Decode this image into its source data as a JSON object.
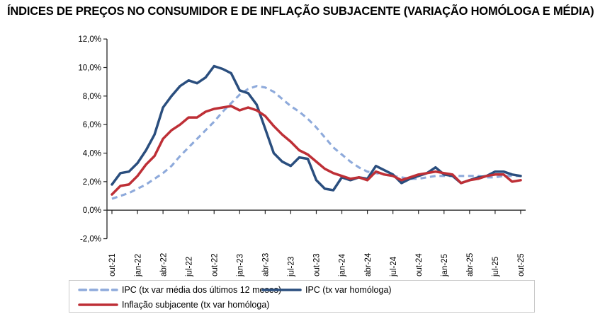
{
  "title": "ÍNDICES DE PREÇOS NO CONSUMIDOR E DE INFLAÇÃO SUBJACENTE (VARIAÇÃO HOMÓLOGA E MÉDIA)",
  "colors": {
    "ipc_media": "#8EAADB",
    "ipc_homologa": "#2A4E7E",
    "subjacente": "#BE2F36",
    "axis": "#262626",
    "tick_text": "#000000",
    "legend_border": "#C9C9C9",
    "background": "#FFFFFF"
  },
  "legend": {
    "ipc_media_label": "IPC (tx var média dos últimos 12 meses)",
    "ipc_homologa_label": "IPC (tx var homóloga)",
    "subjacente_label": "Inflação subjacente (tx var homóloga)"
  },
  "chart_data": {
    "type": "line",
    "title": "ÍNDICES DE PREÇOS NO CONSUMIDOR E DE INFLAÇÃO SUBJACENTE (VARIAÇÃO HOMÓLOGA E MÉDIA)",
    "xlabel": "",
    "ylabel": "",
    "x_frequency": "monthly",
    "x_range": [
      "out-21",
      "out-25"
    ],
    "x_tick_labels": [
      "out-21",
      "jan-22",
      "abr-22",
      "jul-22",
      "out-22",
      "jan-23",
      "abr-23",
      "jul-23",
      "out-23",
      "jan-24",
      "abr-24",
      "jul-24",
      "out-24",
      "jan-25",
      "abr-25",
      "jul-25",
      "out-25"
    ],
    "x_tick_every_n_months": 3,
    "ylim": [
      -2,
      12
    ],
    "y_tick_values": [
      12,
      10,
      8,
      6,
      4,
      2,
      0,
      -2
    ],
    "y_tick_format": "0,0%",
    "grid": false,
    "legend_position": "bottom",
    "series": [
      {
        "name": "IPC (tx var média dos últimos 12 meses)",
        "style": "dashed",
        "color_key": "ipc_media",
        "values": [
          0.8,
          1.0,
          1.2,
          1.5,
          1.8,
          2.2,
          2.6,
          3.1,
          3.8,
          4.4,
          5.0,
          5.6,
          6.2,
          6.9,
          7.5,
          8.1,
          8.5,
          8.7,
          8.6,
          8.3,
          7.8,
          7.3,
          6.9,
          6.4,
          5.8,
          5.1,
          4.4,
          3.9,
          3.4,
          3.0,
          2.7,
          2.6,
          2.5,
          2.4,
          2.3,
          2.2,
          2.2,
          2.3,
          2.4,
          2.4,
          2.4,
          2.4,
          2.4,
          2.4,
          2.3,
          2.3,
          2.4,
          2.4,
          2.4
        ]
      },
      {
        "name": "IPC (tx var homóloga)",
        "style": "solid",
        "color_key": "ipc_homologa",
        "values": [
          1.8,
          2.6,
          2.7,
          3.3,
          4.2,
          5.3,
          7.2,
          8.0,
          8.7,
          9.1,
          8.9,
          9.3,
          10.1,
          9.9,
          9.6,
          8.4,
          8.2,
          7.4,
          5.7,
          4.0,
          3.4,
          3.1,
          3.7,
          3.6,
          2.1,
          1.5,
          1.4,
          2.3,
          2.1,
          2.3,
          2.2,
          3.1,
          2.8,
          2.5,
          1.9,
          2.2,
          2.4,
          2.6,
          3.0,
          2.5,
          2.4,
          1.9,
          2.1,
          2.3,
          2.4,
          2.7,
          2.7,
          2.5,
          2.4
        ]
      },
      {
        "name": "Inflação subjacente (tx var homóloga)",
        "style": "solid",
        "color_key": "subjacente",
        "values": [
          1.1,
          1.7,
          1.8,
          2.4,
          3.2,
          3.8,
          5.0,
          5.6,
          6.0,
          6.5,
          6.5,
          6.9,
          7.1,
          7.2,
          7.3,
          7.0,
          7.2,
          7.0,
          6.6,
          5.9,
          5.3,
          4.8,
          4.2,
          3.9,
          3.4,
          2.9,
          2.6,
          2.4,
          2.2,
          2.3,
          2.1,
          2.7,
          2.5,
          2.4,
          2.1,
          2.3,
          2.5,
          2.6,
          2.7,
          2.6,
          2.5,
          1.9,
          2.1,
          2.2,
          2.4,
          2.5,
          2.5,
          2.0,
          2.1
        ]
      }
    ]
  }
}
